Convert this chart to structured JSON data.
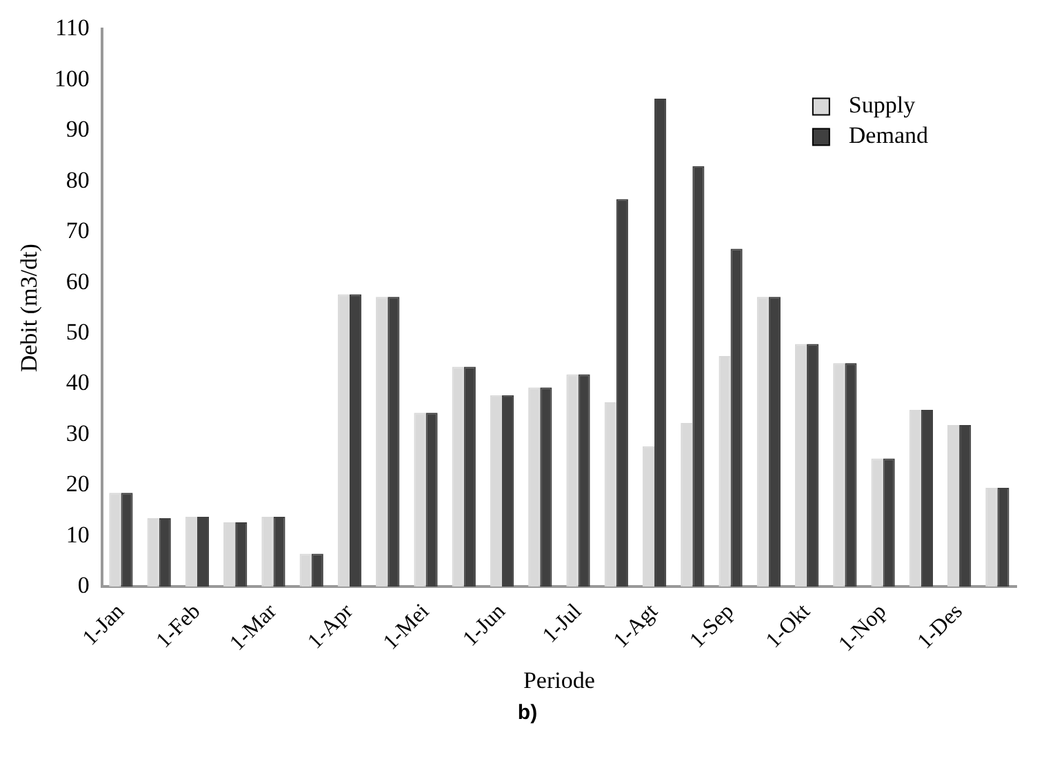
{
  "chart_data": {
    "type": "bar",
    "title": "b)",
    "xlabel": "Periode",
    "ylabel": "Debit (m3/dt)",
    "categories": [
      "1-Jan",
      null,
      "1-Feb",
      null,
      "1-Mar",
      null,
      "1-Apr",
      null,
      "1-Mei",
      null,
      "1-Jun",
      null,
      "1-Jul",
      null,
      "1-Agt",
      null,
      "1-Sep",
      null,
      "1-Okt",
      null,
      "1-Nop",
      null,
      "1-Des",
      null
    ],
    "series": [
      {
        "name": "Supply",
        "color": "#d9d9d9",
        "values": [
          18.5,
          13.5,
          13.8,
          12.7,
          13.8,
          6.5,
          57.7,
          57.2,
          34.3,
          43.4,
          37.8,
          39.3,
          41.9,
          36.4,
          27.7,
          32.3,
          45.5,
          57.2,
          47.9,
          44.1,
          25.3,
          34.9,
          31.9,
          19.5
        ]
      },
      {
        "name": "Demand",
        "color": "#404040",
        "values": [
          18.5,
          13.5,
          13.8,
          12.7,
          13.8,
          6.5,
          57.7,
          57.2,
          34.3,
          43.4,
          37.8,
          39.3,
          41.9,
          76.5,
          96.3,
          83,
          66.7,
          57.2,
          47.9,
          44.1,
          25.3,
          34.9,
          31.9,
          19.5
        ]
      }
    ],
    "ylim": [
      0,
      110
    ],
    "yticks": [
      0,
      10,
      20,
      30,
      40,
      50,
      60,
      70,
      80,
      90,
      100,
      110
    ],
    "grid": false,
    "legend": "top right"
  }
}
